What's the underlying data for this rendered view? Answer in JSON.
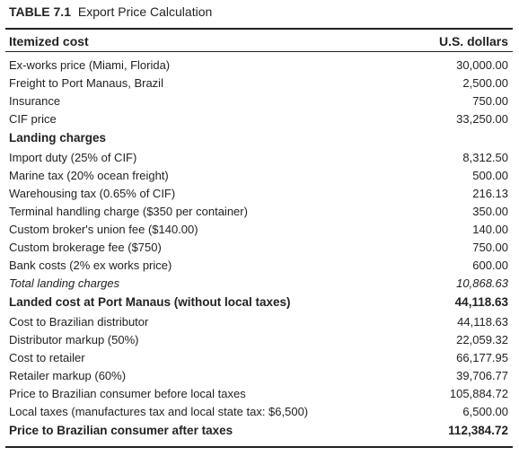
{
  "caption": {
    "label": "TABLE 7.1",
    "title": "Export Price Calculation"
  },
  "headers": {
    "item": "Itemized cost",
    "amount": "U.S. dollars"
  },
  "rows": [
    {
      "label": "Ex-works price (Miami, Florida)",
      "value": "30,000.00"
    },
    {
      "label": "Freight to Port Manaus, Brazil",
      "value": "2,500.00"
    },
    {
      "label": "Insurance",
      "value": "750.00"
    },
    {
      "label": "CIF price",
      "value": "33,250.00"
    },
    {
      "label": "Landing charges",
      "value": ""
    },
    {
      "label": "Import duty (25% of CIF)",
      "value": "8,312.50"
    },
    {
      "label": "Marine tax (20% ocean freight)",
      "value": "500.00"
    },
    {
      "label": "Warehousing tax (0.65% of CIF)",
      "value": "216.13"
    },
    {
      "label": "Terminal handling charge ($350 per container)",
      "value": "350.00"
    },
    {
      "label": "Custom broker's union fee ($140.00)",
      "value": "140.00"
    },
    {
      "label": "Custom brokerage fee ($750)",
      "value": "750.00"
    },
    {
      "label": "Bank costs (2% ex works price)",
      "value": "600.00"
    },
    {
      "label": "Total landing charges",
      "value": "10,868.63"
    },
    {
      "label": "Landed cost at Port Manaus (without local taxes)",
      "value": "44,118.63"
    },
    {
      "label": "Cost to Brazilian distributor",
      "value": "44,118.63"
    },
    {
      "label": "Distributor markup (50%)",
      "value": "22,059.32"
    },
    {
      "label": "Cost to retailer",
      "value": "66,177.95"
    },
    {
      "label": "Retailer markup (60%)",
      "value": "39,706.77"
    },
    {
      "label": "Price to Brazilian consumer before local taxes",
      "value": "105,884.72"
    },
    {
      "label": "Local taxes (manufactures tax and local state tax: $6,500)",
      "value": "6,500.00"
    },
    {
      "label": "Price to Brazilian consumer after taxes",
      "value": "112,384.72"
    }
  ]
}
